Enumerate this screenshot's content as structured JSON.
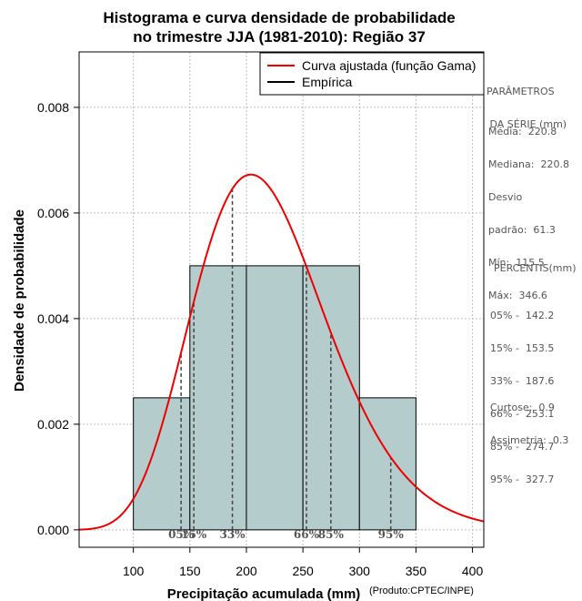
{
  "chart_data": {
    "type": "histogram",
    "title": [
      "Histograma e curva densidade de probabilidade",
      "no trimestre JJA (1981-2010): Região 37"
    ],
    "xlabel": "Precipitação acumulada (mm)",
    "ylabel": "Densidade de probabilidade",
    "credit": "(Produto:CPTEC/INPE)",
    "xlim": [
      52,
      410
    ],
    "ylim": [
      -0.00033,
      0.00905
    ],
    "x_ticks": [
      100,
      150,
      200,
      250,
      300,
      350,
      400
    ],
    "x_tick_labels": [
      "100",
      "150",
      "200",
      "250",
      "300",
      "350",
      "400"
    ],
    "y_ticks": [
      0.0,
      0.002,
      0.004,
      0.006,
      0.008
    ],
    "y_tick_labels": [
      "0.000",
      "0.002",
      "0.004",
      "0.006",
      "0.008"
    ],
    "grid": true,
    "bins": [
      {
        "from": 100,
        "to": 150,
        "density": 0.0025
      },
      {
        "from": 150,
        "to": 200,
        "density": 0.005
      },
      {
        "from": 200,
        "to": 250,
        "density": 0.005
      },
      {
        "from": 250,
        "to": 300,
        "density": 0.005
      },
      {
        "from": 300,
        "to": 350,
        "density": 0.0025
      }
    ],
    "gamma_fit": {
      "shape": 13.0,
      "scale": 17.0
    },
    "legend": [
      {
        "label": "Curva ajustada (função Gama)",
        "color": "#ee0000"
      },
      {
        "label": "Empírica",
        "color": "#000000"
      }
    ],
    "legend_position": "top-right",
    "percentile_markers": [
      {
        "label": "05%",
        "value": 142.2
      },
      {
        "label": "15%",
        "value": 153.5
      },
      {
        "label": "33%",
        "value": 187.6
      },
      {
        "label": "66%",
        "value": 253.1
      },
      {
        "label": "85%",
        "value": 274.7
      },
      {
        "label": "95%",
        "value": 327.7
      }
    ],
    "colors": {
      "bar_fill": "#b4cccc",
      "curve": "#ee0000",
      "axis": "#000000",
      "grid": "#bbbbbb",
      "marker": "#444444"
    }
  },
  "side_panel": {
    "params_title": [
      "PARÂMETROS",
      " DA SÉRIE (mm)"
    ],
    "stats": [
      "Média:  220.8",
      "Mediana:  220.8",
      "Desvio",
      "padrão:  61.3",
      "Mín:  115.5",
      "Máx:  346.6"
    ],
    "percentis_title": "PERCENTIS(mm)",
    "percentis": [
      "05% -  142.2",
      "15% -  153.5",
      "33% -  187.6",
      "66% -  253.1",
      "85% -  274.7",
      "95% -  327.7"
    ],
    "shape": [
      "Curtose:  0.9",
      "Assimetria:  0.3"
    ]
  }
}
